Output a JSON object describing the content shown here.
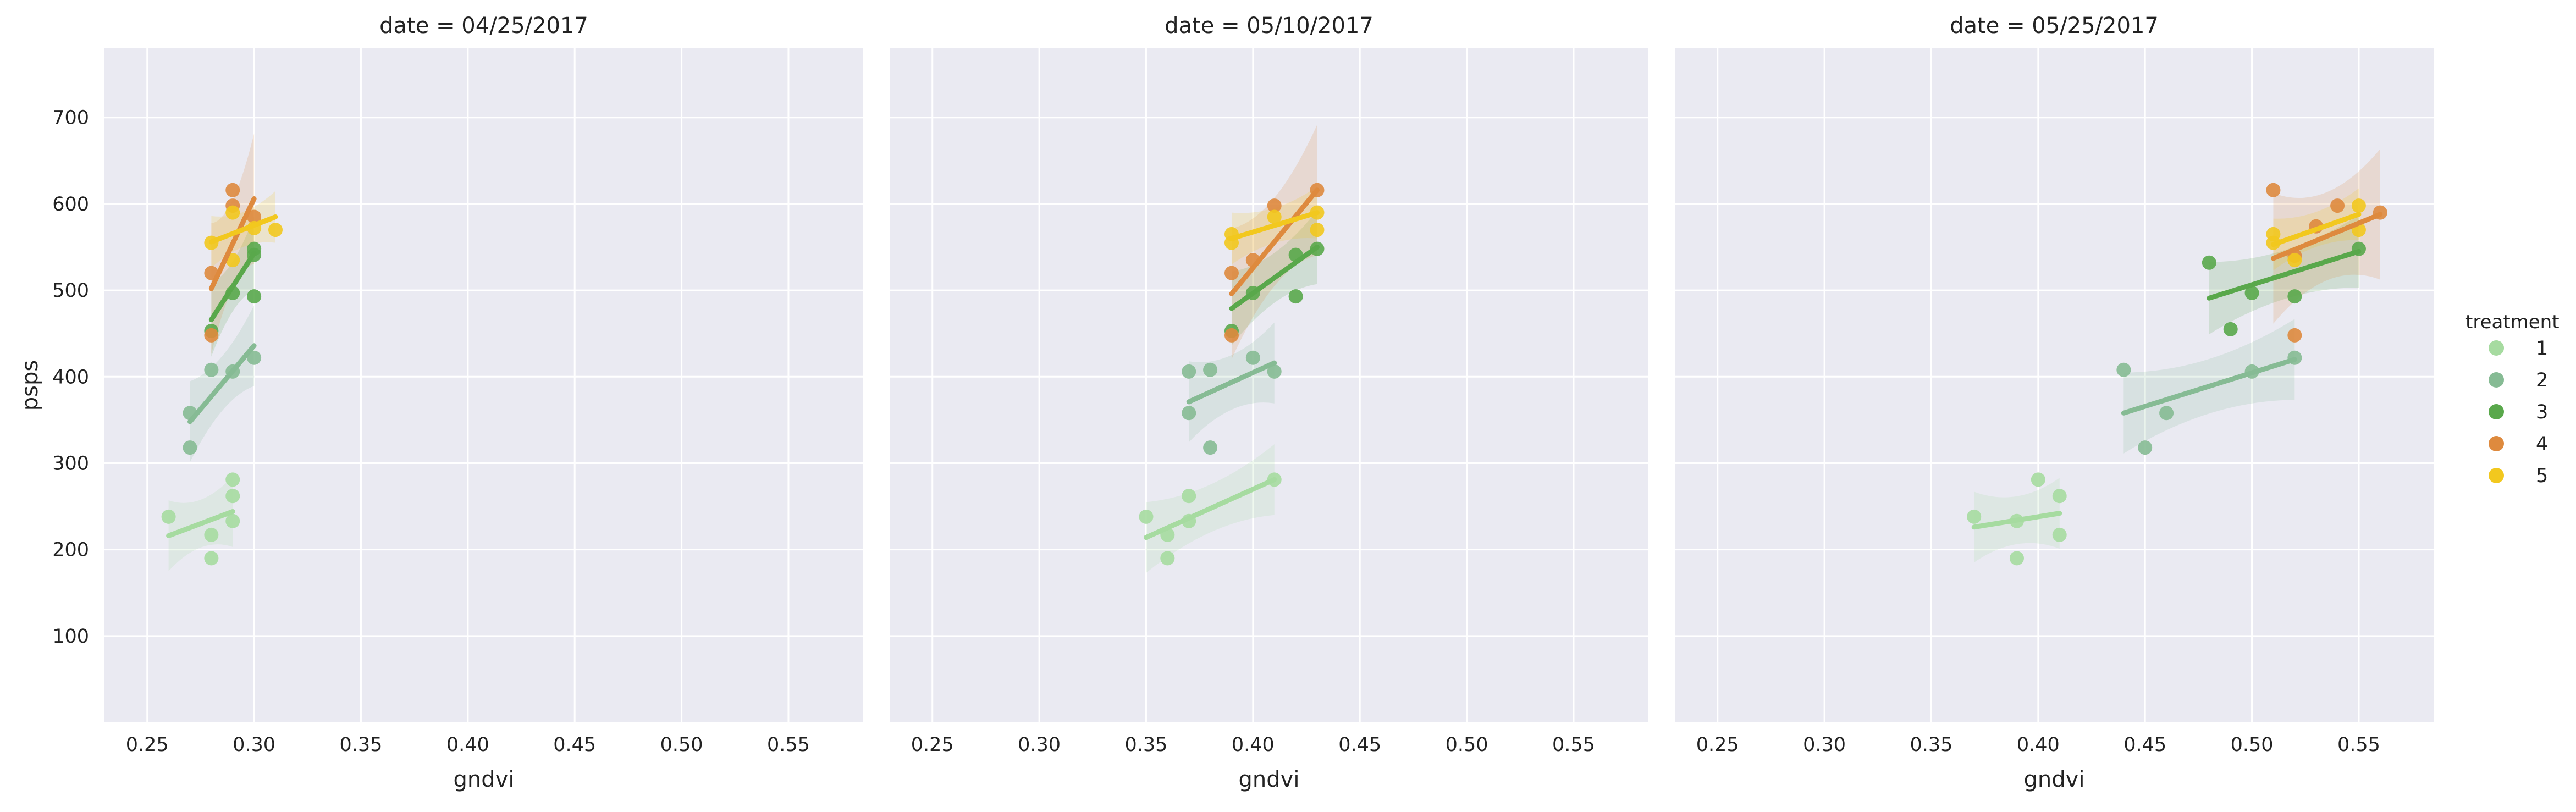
{
  "chart_data": {
    "type": "scatter",
    "subtype": "faceted scatter with linear regression fits and confidence bands",
    "xlabel": "gndvi",
    "ylabel": "psps",
    "xlim": [
      0.23,
      0.585
    ],
    "ylim": [
      0,
      780
    ],
    "xticks": [
      0.25,
      0.3,
      0.35,
      0.4,
      0.45,
      0.5,
      0.55
    ],
    "xtick_labels": [
      "0.25",
      "0.30",
      "0.35",
      "0.40",
      "0.45",
      "0.50",
      "0.55"
    ],
    "yticks": [
      100,
      200,
      300,
      400,
      500,
      600,
      700
    ],
    "ytick_labels": [
      "100",
      "200",
      "300",
      "400",
      "500",
      "600",
      "700"
    ],
    "grid": true,
    "legend": {
      "title": "treatment",
      "placement": "right",
      "entries": [
        {
          "label": "1",
          "color": "#a6dba0"
        },
        {
          "label": "2",
          "color": "#86bb94"
        },
        {
          "label": "3",
          "color": "#59a84b"
        },
        {
          "label": "4",
          "color": "#de8a3e"
        },
        {
          "label": "5",
          "color": "#f2c81e"
        }
      ]
    },
    "panels": [
      {
        "title": "date = 04/25/2017",
        "series": [
          {
            "name": "1",
            "points": [
              [
                0.26,
                238
              ],
              [
                0.28,
                190
              ],
              [
                0.28,
                217
              ],
              [
                0.29,
                233
              ],
              [
                0.29,
                262
              ],
              [
                0.29,
                281
              ]
            ],
            "fit": [
              [
                0.26,
                216
              ],
              [
                0.29,
                244
              ]
            ]
          },
          {
            "name": "2",
            "points": [
              [
                0.27,
                318
              ],
              [
                0.27,
                358
              ],
              [
                0.28,
                408
              ],
              [
                0.29,
                406
              ],
              [
                0.3,
                422
              ]
            ],
            "fit": [
              [
                0.27,
                348
              ],
              [
                0.3,
                436
              ]
            ]
          },
          {
            "name": "3",
            "points": [
              [
                0.28,
                453
              ],
              [
                0.29,
                497
              ],
              [
                0.3,
                493
              ],
              [
                0.3,
                541
              ],
              [
                0.3,
                548
              ]
            ],
            "fit": [
              [
                0.28,
                466
              ],
              [
                0.3,
                543
              ]
            ]
          },
          {
            "name": "4",
            "points": [
              [
                0.28,
                448
              ],
              [
                0.28,
                520
              ],
              [
                0.29,
                598
              ],
              [
                0.29,
                616
              ],
              [
                0.3,
                585
              ]
            ],
            "fit": [
              [
                0.28,
                502
              ],
              [
                0.3,
                606
              ]
            ]
          },
          {
            "name": "5",
            "points": [
              [
                0.28,
                555
              ],
              [
                0.29,
                535
              ],
              [
                0.29,
                590
              ],
              [
                0.3,
                572
              ],
              [
                0.31,
                570
              ]
            ],
            "fit": [
              [
                0.28,
                556
              ],
              [
                0.31,
                585
              ]
            ]
          }
        ]
      },
      {
        "title": "date = 05/10/2017",
        "series": [
          {
            "name": "1",
            "points": [
              [
                0.35,
                238
              ],
              [
                0.36,
                190
              ],
              [
                0.36,
                217
              ],
              [
                0.37,
                233
              ],
              [
                0.37,
                262
              ],
              [
                0.41,
                281
              ]
            ],
            "fit": [
              [
                0.35,
                214
              ],
              [
                0.41,
                281
              ]
            ]
          },
          {
            "name": "2",
            "points": [
              [
                0.37,
                358
              ],
              [
                0.37,
                406
              ],
              [
                0.38,
                318
              ],
              [
                0.38,
                408
              ],
              [
                0.4,
                422
              ],
              [
                0.41,
                406
              ]
            ],
            "fit": [
              [
                0.37,
                371
              ],
              [
                0.41,
                416
              ]
            ]
          },
          {
            "name": "3",
            "points": [
              [
                0.39,
                453
              ],
              [
                0.4,
                497
              ],
              [
                0.42,
                493
              ],
              [
                0.42,
                541
              ],
              [
                0.43,
                548
              ]
            ],
            "fit": [
              [
                0.39,
                479
              ],
              [
                0.43,
                550
              ]
            ]
          },
          {
            "name": "4",
            "points": [
              [
                0.39,
                448
              ],
              [
                0.39,
                520
              ],
              [
                0.4,
                535
              ],
              [
                0.41,
                598
              ],
              [
                0.43,
                616
              ]
            ],
            "fit": [
              [
                0.39,
                496
              ],
              [
                0.43,
                616
              ]
            ]
          },
          {
            "name": "5",
            "points": [
              [
                0.39,
                555
              ],
              [
                0.39,
                565
              ],
              [
                0.41,
                585
              ],
              [
                0.43,
                570
              ],
              [
                0.43,
                590
              ]
            ],
            "fit": [
              [
                0.39,
                560
              ],
              [
                0.43,
                590
              ]
            ]
          }
        ]
      },
      {
        "title": "date = 05/25/2017",
        "series": [
          {
            "name": "1",
            "points": [
              [
                0.37,
                238
              ],
              [
                0.39,
                190
              ],
              [
                0.39,
                233
              ],
              [
                0.4,
                281
              ],
              [
                0.41,
                217
              ],
              [
                0.41,
                262
              ]
            ],
            "fit": [
              [
                0.37,
                226
              ],
              [
                0.41,
                242
              ]
            ]
          },
          {
            "name": "2",
            "points": [
              [
                0.44,
                408
              ],
              [
                0.45,
                318
              ],
              [
                0.46,
                358
              ],
              [
                0.5,
                406
              ],
              [
                0.52,
                422
              ]
            ],
            "fit": [
              [
                0.44,
                358
              ],
              [
                0.52,
                420
              ]
            ]
          },
          {
            "name": "3",
            "points": [
              [
                0.48,
                532
              ],
              [
                0.49,
                455
              ],
              [
                0.5,
                497
              ],
              [
                0.52,
                493
              ],
              [
                0.55,
                548
              ]
            ],
            "fit": [
              [
                0.48,
                491
              ],
              [
                0.55,
                545
              ]
            ]
          },
          {
            "name": "4",
            "points": [
              [
                0.51,
                616
              ],
              [
                0.52,
                448
              ],
              [
                0.52,
                540
              ],
              [
                0.53,
                574
              ],
              [
                0.54,
                598
              ],
              [
                0.56,
                590
              ]
            ],
            "fit": [
              [
                0.51,
                537
              ],
              [
                0.56,
                588
              ]
            ]
          },
          {
            "name": "5",
            "points": [
              [
                0.51,
                555
              ],
              [
                0.51,
                565
              ],
              [
                0.52,
                535
              ],
              [
                0.55,
                570
              ],
              [
                0.55,
                598
              ]
            ],
            "fit": [
              [
                0.51,
                553
              ],
              [
                0.55,
                588
              ]
            ]
          }
        ]
      }
    ]
  }
}
